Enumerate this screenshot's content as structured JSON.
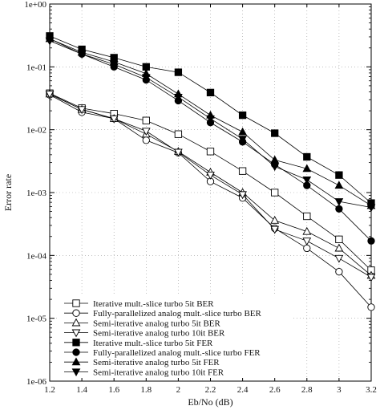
{
  "chart_data": {
    "type": "line",
    "xlabel": "Eb/No (dB)",
    "ylabel": "Error rate",
    "xlim": [
      1.2,
      3.2
    ],
    "ylim": [
      1e-06,
      1
    ],
    "yscale": "log",
    "grid": true,
    "legend_placement": "bottom-left",
    "x_ticks": [
      "1.2",
      "1.4",
      "1.6",
      "1.8",
      "2",
      "2.2",
      "2.4",
      "2.6",
      "2.8",
      "3",
      "3.2"
    ],
    "y_ticks": [
      "1e-06",
      "1e-05",
      "1e-04",
      "1e-03",
      "1e-02",
      "1e-01",
      "1e+00"
    ],
    "x": [
      1.2,
      1.4,
      1.6,
      1.8,
      2.0,
      2.2,
      2.4,
      2.6,
      2.8,
      3.0,
      3.2
    ],
    "series": [
      {
        "name": "Iterative mult.-slice turbo 5it BER",
        "marker": "square-open",
        "values": [
          0.038,
          0.022,
          0.018,
          0.014,
          0.0085,
          0.0045,
          0.0022,
          0.001,
          0.00042,
          0.00018,
          5.8e-05
        ]
      },
      {
        "name": "Fully-parallelized analog mult.-slice turbo BER",
        "marker": "circle-open",
        "values": [
          0.036,
          0.019,
          0.015,
          0.0068,
          0.0043,
          0.0015,
          0.00082,
          0.00027,
          0.00013,
          5.5e-05,
          1.5e-05
        ]
      },
      {
        "name": "Semi-iterative analog turbo 5it BER",
        "marker": "triangle-up-open",
        "values": [
          0.037,
          0.021,
          0.015,
          0.0085,
          0.0045,
          0.0021,
          0.001,
          0.00036,
          0.00024,
          0.00013,
          4.8e-05
        ]
      },
      {
        "name": "Semi-iterative analog turbo 10it BER",
        "marker": "triangle-down-open",
        "values": [
          0.037,
          0.021,
          0.015,
          0.0095,
          0.0044,
          0.0019,
          0.00093,
          0.00026,
          0.00017,
          9e-05,
          4.5e-05
        ]
      },
      {
        "name": "Iterative mult.-slice turbo 5it FER",
        "marker": "square-filled",
        "values": [
          0.31,
          0.19,
          0.14,
          0.1,
          0.082,
          0.039,
          0.017,
          0.0088,
          0.0037,
          0.0019,
          0.00068
        ]
      },
      {
        "name": "Fully-parallelized analog mult.-slice turbo FER",
        "marker": "circle-filled",
        "values": [
          0.28,
          0.16,
          0.1,
          0.062,
          0.029,
          0.013,
          0.0064,
          0.0028,
          0.0013,
          0.00055,
          0.00017
        ]
      },
      {
        "name": "Semi-iterative analog turbo 5it FER",
        "marker": "triangle-up-filled",
        "values": [
          0.28,
          0.17,
          0.12,
          0.078,
          0.037,
          0.017,
          0.0092,
          0.0033,
          0.0024,
          0.0013,
          0.00062
        ]
      },
      {
        "name": "Semi-iterative analog turbo 10it FER",
        "marker": "triangle-down-filled",
        "values": [
          0.26,
          0.16,
          0.11,
          0.068,
          0.033,
          0.015,
          0.0071,
          0.0026,
          0.0016,
          0.00072,
          0.00058
        ]
      }
    ]
  }
}
